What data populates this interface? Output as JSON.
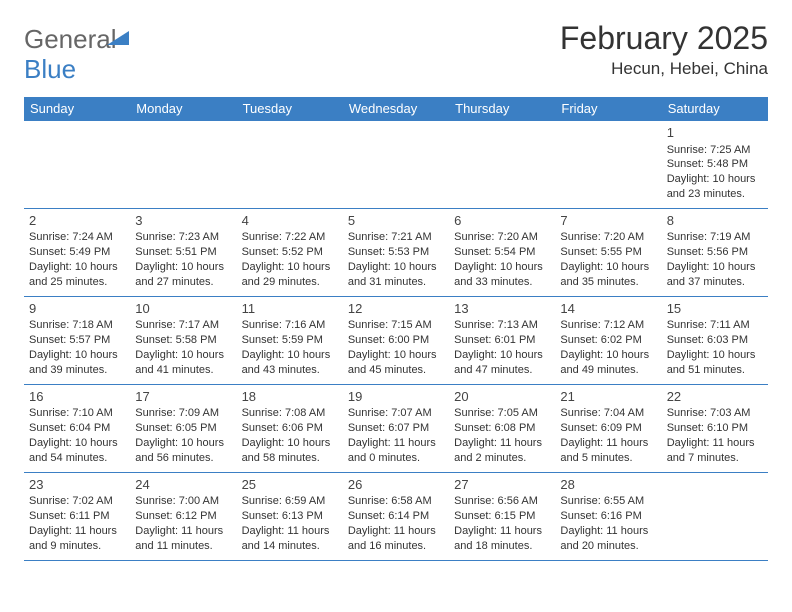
{
  "logo": {
    "text1": "General",
    "text2": "Blue"
  },
  "title": "February 2025",
  "location": "Hecun, Hebei, China",
  "colors": {
    "header_bg": "#3b7fc4",
    "header_text": "#ffffff",
    "border": "#3b7fc4",
    "body_text": "#333333",
    "logo_gray": "#666666",
    "logo_blue": "#3b7fc4"
  },
  "fonts": {
    "title_size": 32,
    "location_size": 17,
    "th_size": 13,
    "cell_size": 11,
    "daynum_size": 13
  },
  "weekdays": [
    "Sunday",
    "Monday",
    "Tuesday",
    "Wednesday",
    "Thursday",
    "Friday",
    "Saturday"
  ],
  "weeks": [
    [
      null,
      null,
      null,
      null,
      null,
      null,
      {
        "d": "1",
        "sr": "Sunrise: 7:25 AM",
        "ss": "Sunset: 5:48 PM",
        "dl1": "Daylight: 10 hours",
        "dl2": "and 23 minutes."
      }
    ],
    [
      {
        "d": "2",
        "sr": "Sunrise: 7:24 AM",
        "ss": "Sunset: 5:49 PM",
        "dl1": "Daylight: 10 hours",
        "dl2": "and 25 minutes."
      },
      {
        "d": "3",
        "sr": "Sunrise: 7:23 AM",
        "ss": "Sunset: 5:51 PM",
        "dl1": "Daylight: 10 hours",
        "dl2": "and 27 minutes."
      },
      {
        "d": "4",
        "sr": "Sunrise: 7:22 AM",
        "ss": "Sunset: 5:52 PM",
        "dl1": "Daylight: 10 hours",
        "dl2": "and 29 minutes."
      },
      {
        "d": "5",
        "sr": "Sunrise: 7:21 AM",
        "ss": "Sunset: 5:53 PM",
        "dl1": "Daylight: 10 hours",
        "dl2": "and 31 minutes."
      },
      {
        "d": "6",
        "sr": "Sunrise: 7:20 AM",
        "ss": "Sunset: 5:54 PM",
        "dl1": "Daylight: 10 hours",
        "dl2": "and 33 minutes."
      },
      {
        "d": "7",
        "sr": "Sunrise: 7:20 AM",
        "ss": "Sunset: 5:55 PM",
        "dl1": "Daylight: 10 hours",
        "dl2": "and 35 minutes."
      },
      {
        "d": "8",
        "sr": "Sunrise: 7:19 AM",
        "ss": "Sunset: 5:56 PM",
        "dl1": "Daylight: 10 hours",
        "dl2": "and 37 minutes."
      }
    ],
    [
      {
        "d": "9",
        "sr": "Sunrise: 7:18 AM",
        "ss": "Sunset: 5:57 PM",
        "dl1": "Daylight: 10 hours",
        "dl2": "and 39 minutes."
      },
      {
        "d": "10",
        "sr": "Sunrise: 7:17 AM",
        "ss": "Sunset: 5:58 PM",
        "dl1": "Daylight: 10 hours",
        "dl2": "and 41 minutes."
      },
      {
        "d": "11",
        "sr": "Sunrise: 7:16 AM",
        "ss": "Sunset: 5:59 PM",
        "dl1": "Daylight: 10 hours",
        "dl2": "and 43 minutes."
      },
      {
        "d": "12",
        "sr": "Sunrise: 7:15 AM",
        "ss": "Sunset: 6:00 PM",
        "dl1": "Daylight: 10 hours",
        "dl2": "and 45 minutes."
      },
      {
        "d": "13",
        "sr": "Sunrise: 7:13 AM",
        "ss": "Sunset: 6:01 PM",
        "dl1": "Daylight: 10 hours",
        "dl2": "and 47 minutes."
      },
      {
        "d": "14",
        "sr": "Sunrise: 7:12 AM",
        "ss": "Sunset: 6:02 PM",
        "dl1": "Daylight: 10 hours",
        "dl2": "and 49 minutes."
      },
      {
        "d": "15",
        "sr": "Sunrise: 7:11 AM",
        "ss": "Sunset: 6:03 PM",
        "dl1": "Daylight: 10 hours",
        "dl2": "and 51 minutes."
      }
    ],
    [
      {
        "d": "16",
        "sr": "Sunrise: 7:10 AM",
        "ss": "Sunset: 6:04 PM",
        "dl1": "Daylight: 10 hours",
        "dl2": "and 54 minutes."
      },
      {
        "d": "17",
        "sr": "Sunrise: 7:09 AM",
        "ss": "Sunset: 6:05 PM",
        "dl1": "Daylight: 10 hours",
        "dl2": "and 56 minutes."
      },
      {
        "d": "18",
        "sr": "Sunrise: 7:08 AM",
        "ss": "Sunset: 6:06 PM",
        "dl1": "Daylight: 10 hours",
        "dl2": "and 58 minutes."
      },
      {
        "d": "19",
        "sr": "Sunrise: 7:07 AM",
        "ss": "Sunset: 6:07 PM",
        "dl1": "Daylight: 11 hours",
        "dl2": "and 0 minutes."
      },
      {
        "d": "20",
        "sr": "Sunrise: 7:05 AM",
        "ss": "Sunset: 6:08 PM",
        "dl1": "Daylight: 11 hours",
        "dl2": "and 2 minutes."
      },
      {
        "d": "21",
        "sr": "Sunrise: 7:04 AM",
        "ss": "Sunset: 6:09 PM",
        "dl1": "Daylight: 11 hours",
        "dl2": "and 5 minutes."
      },
      {
        "d": "22",
        "sr": "Sunrise: 7:03 AM",
        "ss": "Sunset: 6:10 PM",
        "dl1": "Daylight: 11 hours",
        "dl2": "and 7 minutes."
      }
    ],
    [
      {
        "d": "23",
        "sr": "Sunrise: 7:02 AM",
        "ss": "Sunset: 6:11 PM",
        "dl1": "Daylight: 11 hours",
        "dl2": "and 9 minutes."
      },
      {
        "d": "24",
        "sr": "Sunrise: 7:00 AM",
        "ss": "Sunset: 6:12 PM",
        "dl1": "Daylight: 11 hours",
        "dl2": "and 11 minutes."
      },
      {
        "d": "25",
        "sr": "Sunrise: 6:59 AM",
        "ss": "Sunset: 6:13 PM",
        "dl1": "Daylight: 11 hours",
        "dl2": "and 14 minutes."
      },
      {
        "d": "26",
        "sr": "Sunrise: 6:58 AM",
        "ss": "Sunset: 6:14 PM",
        "dl1": "Daylight: 11 hours",
        "dl2": "and 16 minutes."
      },
      {
        "d": "27",
        "sr": "Sunrise: 6:56 AM",
        "ss": "Sunset: 6:15 PM",
        "dl1": "Daylight: 11 hours",
        "dl2": "and 18 minutes."
      },
      {
        "d": "28",
        "sr": "Sunrise: 6:55 AM",
        "ss": "Sunset: 6:16 PM",
        "dl1": "Daylight: 11 hours",
        "dl2": "and 20 minutes."
      },
      null
    ]
  ]
}
